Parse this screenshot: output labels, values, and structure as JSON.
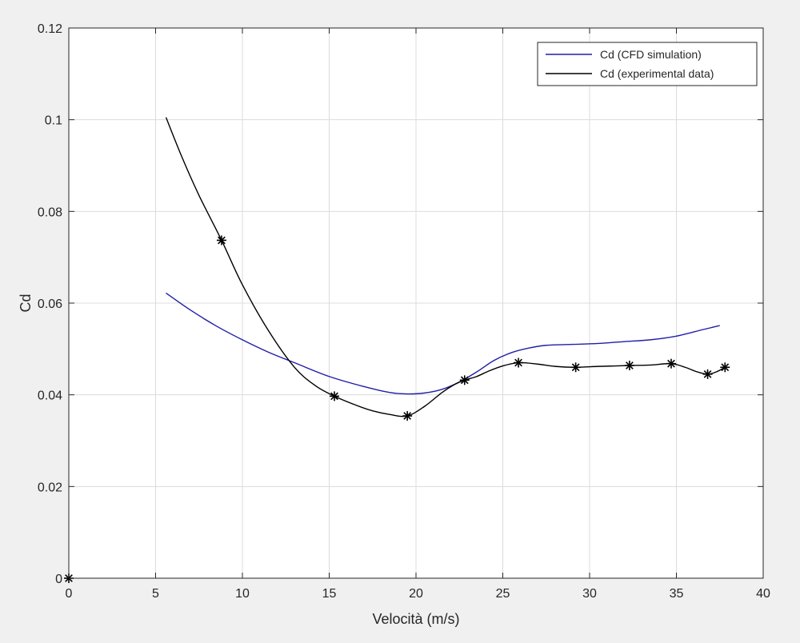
{
  "chart_data": {
    "type": "line",
    "title": "",
    "xlabel": "Velocità (m/s)",
    "ylabel": "Cd",
    "xlim": [
      0,
      40
    ],
    "ylim": [
      0,
      0.12
    ],
    "xticks": [
      "0",
      "5",
      "10",
      "15",
      "20",
      "25",
      "30",
      "35",
      "40"
    ],
    "yticks": [
      "0",
      "0.02",
      "0.04",
      "0.06",
      "0.08",
      "0.1",
      "0.12"
    ],
    "grid": true,
    "legend_position": "top-right",
    "background_color": "#f0f0f0",
    "plot_background_color": "#ffffff",
    "grid_color": "#dcdcdc",
    "series": [
      {
        "name": "Cd (CFD simulation)",
        "color": "#1f1fa8",
        "markers": false,
        "x": [
          5.6,
          7,
          8.5,
          10,
          11.5,
          13,
          15,
          17,
          18.5,
          19.5,
          20.5,
          21.5,
          22.5,
          23.5,
          24.5,
          25.5,
          26.5,
          27.5,
          29,
          30.5,
          32,
          33.5,
          35,
          36.5,
          37.5
        ],
        "y": [
          0.0622,
          0.0585,
          0.055,
          0.052,
          0.0493,
          0.047,
          0.044,
          0.0418,
          0.0405,
          0.0402,
          0.0404,
          0.0412,
          0.0428,
          0.045,
          0.0475,
          0.0492,
          0.0502,
          0.0508,
          0.051,
          0.0512,
          0.0516,
          0.052,
          0.0528,
          0.0542,
          0.0551
        ]
      },
      {
        "name": "Cd (experimental data)",
        "color": "#000000",
        "markers": false,
        "x": [
          5.6,
          6.5,
          7.5,
          8.8,
          10,
          11.5,
          13,
          14.2,
          15.3,
          16.5,
          17.5,
          18.5,
          19.5,
          20.5,
          21.5,
          22.2,
          22.8,
          23.5,
          24.2,
          25,
          25.9,
          27,
          28,
          29.2,
          30.5,
          31.5,
          32.3,
          33.5,
          34.7,
          35.5,
          36.2,
          36.8,
          37.3,
          37.8
        ],
        "y": [
          0.1005,
          0.092,
          0.0835,
          0.0737,
          0.064,
          0.054,
          0.046,
          0.042,
          0.0397,
          0.0378,
          0.0365,
          0.0357,
          0.0354,
          0.0375,
          0.0405,
          0.0422,
          0.0432,
          0.044,
          0.0452,
          0.0463,
          0.047,
          0.0467,
          0.0462,
          0.046,
          0.0462,
          0.0463,
          0.0464,
          0.0465,
          0.0468,
          0.046,
          0.045,
          0.0445,
          0.045,
          0.046
        ]
      },
      {
        "name": "",
        "color": "#000000",
        "markers": true,
        "marker": "*",
        "line": false,
        "x": [
          0,
          8.8,
          15.3,
          19.5,
          22.8,
          25.9,
          29.2,
          32.3,
          34.7,
          36.8,
          37.8
        ],
        "y": [
          0,
          0.0737,
          0.0397,
          0.0354,
          0.0432,
          0.047,
          0.046,
          0.0464,
          0.0468,
          0.0445,
          0.046
        ]
      }
    ]
  }
}
